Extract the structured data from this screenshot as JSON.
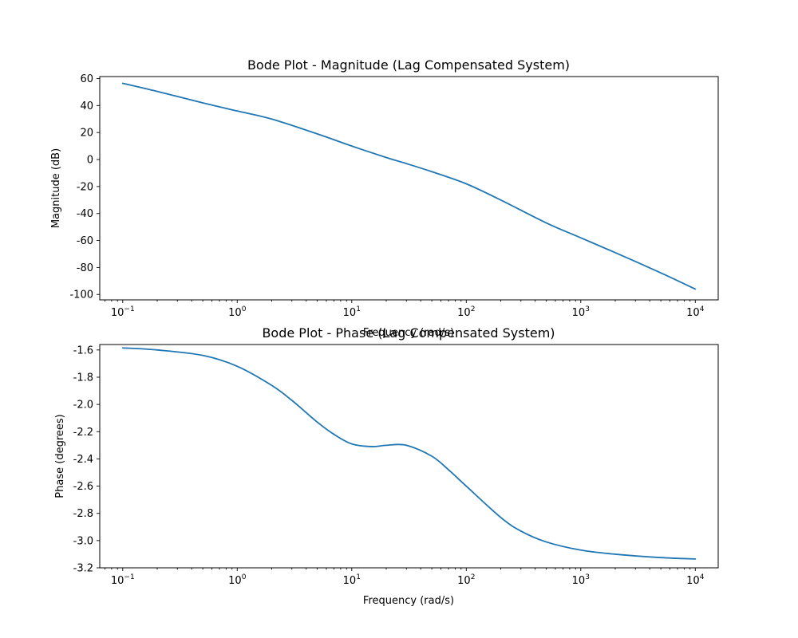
{
  "chart_data": [
    {
      "type": "line",
      "title": "Bode Plot - Magnitude (Lag Compensated System)",
      "xlabel": "Frequency (rad/s)",
      "ylabel": "Magnitude (dB)",
      "xscale": "log",
      "xlim": [
        0.063,
        15850
      ],
      "ylim": [
        -104,
        61.5
      ],
      "yticks": [
        60,
        40,
        20,
        0,
        -20,
        -40,
        -60,
        -80,
        -100
      ],
      "ytick_labels": [
        "60",
        "40",
        "20",
        "0",
        "-20",
        "-40",
        "-60",
        "-80",
        "-100"
      ],
      "xticks": [
        0.1,
        1,
        10,
        100,
        1000,
        10000
      ],
      "xtick_labels": [
        {
          "base": "10",
          "exp": "−1"
        },
        {
          "base": "10",
          "exp": "0"
        },
        {
          "base": "10",
          "exp": "1"
        },
        {
          "base": "10",
          "exp": "2"
        },
        {
          "base": "10",
          "exp": "3"
        },
        {
          "base": "10",
          "exp": "4"
        }
      ],
      "grid": false,
      "color": "#1f77b4",
      "series": [
        {
          "x": [
            0.1,
            0.2,
            0.5,
            1,
            2,
            5,
            10,
            20,
            30,
            50,
            100,
            200,
            500,
            1000,
            2000,
            5000,
            10000
          ],
          "y": [
            56.5,
            50.5,
            42,
            36,
            30,
            19,
            10,
            1.5,
            -3,
            -9,
            -18,
            -30,
            -47,
            -58,
            -69,
            -84,
            -96
          ]
        }
      ]
    },
    {
      "type": "line",
      "title": "Bode Plot - Phase (Lag Compensated System)",
      "xlabel": "Frequency (rad/s)",
      "ylabel": "Phase (degrees)",
      "xscale": "log",
      "xlim": [
        0.063,
        15850
      ],
      "ylim": [
        -3.2,
        -1.56
      ],
      "yticks": [
        -1.6,
        -1.8,
        -2.0,
        -2.2,
        -2.4,
        -2.6,
        -2.8,
        -3.0,
        -3.2
      ],
      "ytick_labels": [
        "-1.6",
        "-1.8",
        "-2.0",
        "-2.2",
        "-2.4",
        "-2.6",
        "-2.8",
        "-3.0",
        "-3.2"
      ],
      "xticks": [
        0.1,
        1,
        10,
        100,
        1000,
        10000
      ],
      "xtick_labels": [
        {
          "base": "10",
          "exp": "−1"
        },
        {
          "base": "10",
          "exp": "0"
        },
        {
          "base": "10",
          "exp": "1"
        },
        {
          "base": "10",
          "exp": "2"
        },
        {
          "base": "10",
          "exp": "3"
        },
        {
          "base": "10",
          "exp": "4"
        }
      ],
      "grid": false,
      "color": "#1f77b4",
      "series": [
        {
          "x": [
            0.1,
            0.2,
            0.5,
            1,
            2,
            3,
            5,
            7,
            10,
            15,
            20,
            30,
            50,
            70,
            100,
            200,
            300,
            500,
            1000,
            2000,
            5000,
            10000
          ],
          "y": [
            -1.585,
            -1.6,
            -1.64,
            -1.72,
            -1.86,
            -1.97,
            -2.13,
            -2.22,
            -2.29,
            -2.31,
            -2.3,
            -2.3,
            -2.38,
            -2.48,
            -2.6,
            -2.83,
            -2.93,
            -3.01,
            -3.07,
            -3.1,
            -3.125,
            -3.135
          ]
        }
      ]
    }
  ]
}
